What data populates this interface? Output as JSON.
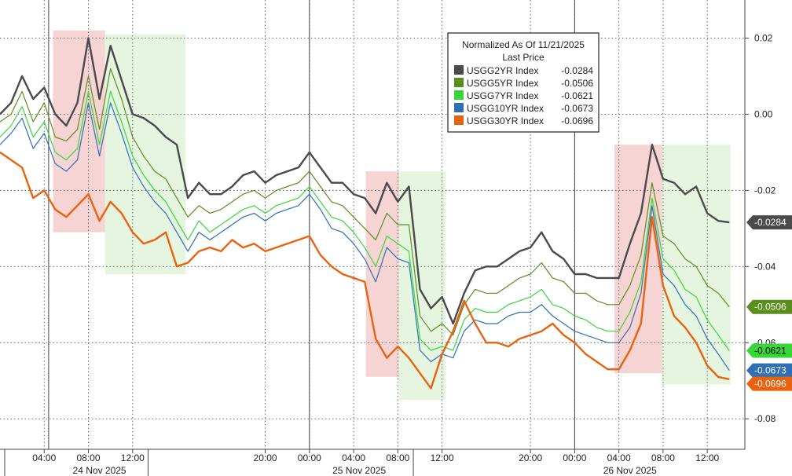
{
  "chart_data": {
    "type": "line",
    "title": "",
    "ylim": [
      -0.088,
      0.03
    ],
    "yticks": [
      0.02,
      0.0,
      -0.02,
      -0.04,
      -0.06,
      -0.08
    ],
    "ytick_labels": [
      "0.02",
      "0.00",
      "-0.02",
      "-0.04",
      "-0.06",
      "-0.08"
    ],
    "xticks": [
      {
        "x": 12,
        "label": "04:00"
      },
      {
        "x": 16,
        "label": "08:00"
      },
      {
        "x": 20,
        "label": "12:00"
      },
      {
        "x": 32,
        "label": "20:00"
      },
      {
        "x": 36,
        "label": "00:00"
      },
      {
        "x": 40,
        "label": "04:00"
      },
      {
        "x": 44,
        "label": "08:00"
      },
      {
        "x": 48,
        "label": "12:00"
      },
      {
        "x": 56,
        "label": "20:00"
      },
      {
        "x": 60,
        "label": "00:00"
      },
      {
        "x": 64,
        "label": "04:00"
      },
      {
        "x": 68,
        "label": "08:00"
      },
      {
        "x": 72,
        "label": "12:00"
      }
    ],
    "x_range": [
      8,
      75.4
    ],
    "date_labels": [
      {
        "x": 17,
        "label": "24 Nov 2025"
      },
      {
        "x": 40.5,
        "label": "25 Nov 2025"
      },
      {
        "x": 65,
        "label": "26 Nov 2025"
      }
    ],
    "day_separators": [
      21.4,
      45.4
    ],
    "midnight_lines": [
      12.4,
      36,
      60
    ],
    "legend": {
      "title_lines": [
        "Normalized As Of 11/21/2025",
        "Last Price"
      ],
      "placement": "top-right"
    },
    "shaded_regions": [
      {
        "x0": 12.8,
        "x1": 17.5,
        "y0": 0.022,
        "y1": -0.031,
        "kind": "red"
      },
      {
        "x0": 17.5,
        "x1": 24.8,
        "y0": 0.021,
        "y1": -0.042,
        "kind": "green"
      },
      {
        "x0": 41.1,
        "x1": 44.1,
        "y0": -0.015,
        "y1": -0.069,
        "kind": "red"
      },
      {
        "x0": 44.1,
        "x1": 48.3,
        "y0": -0.015,
        "y1": -0.075,
        "kind": "green"
      },
      {
        "x0": 63.6,
        "x1": 67.9,
        "y0": -0.008,
        "y1": -0.068,
        "kind": "red"
      },
      {
        "x0": 67.9,
        "x1": 74.1,
        "y0": -0.008,
        "y1": -0.071,
        "kind": "green"
      }
    ],
    "series": [
      {
        "name": "USGG2YR Index",
        "last": "-0.0284",
        "color": "#4a4a4a",
        "x": [
          8,
          9,
          10,
          11,
          12,
          13,
          14,
          15,
          16,
          17,
          18,
          19,
          20,
          21,
          22,
          23,
          24,
          25,
          26,
          27,
          28,
          29,
          30,
          31,
          32,
          33,
          34,
          35,
          36,
          37,
          38,
          39,
          40,
          41,
          42,
          43,
          44,
          45,
          46,
          47,
          48,
          49,
          50,
          51,
          52,
          53,
          54,
          55,
          56,
          57,
          58,
          59,
          60,
          61,
          62,
          63,
          64,
          65,
          66,
          67,
          68,
          69,
          70,
          71,
          72,
          73,
          74
        ],
        "y": [
          0.0,
          0.003,
          0.01,
          0.004,
          0.007,
          0.0,
          -0.003,
          0.003,
          0.02,
          0.004,
          0.018,
          0.009,
          0.0,
          -0.001,
          -0.003,
          -0.006,
          -0.008,
          -0.022,
          -0.018,
          -0.021,
          -0.021,
          -0.019,
          -0.016,
          -0.015,
          -0.018,
          -0.016,
          -0.015,
          -0.014,
          -0.01,
          -0.014,
          -0.018,
          -0.018,
          -0.021,
          -0.022,
          -0.026,
          -0.018,
          -0.023,
          -0.019,
          -0.046,
          -0.051,
          -0.048,
          -0.055,
          -0.047,
          -0.041,
          -0.04,
          -0.04,
          -0.038,
          -0.036,
          -0.035,
          -0.031,
          -0.036,
          -0.038,
          -0.042,
          -0.042,
          -0.043,
          -0.043,
          -0.043,
          -0.034,
          -0.026,
          -0.008,
          -0.017,
          -0.018,
          -0.021,
          -0.019,
          -0.026,
          -0.028,
          -0.0284
        ]
      },
      {
        "name": "USGG5YR Index",
        "last": "-0.0506",
        "color": "#5a8f1e",
        "x": [
          8,
          9,
          10,
          11,
          12,
          13,
          14,
          15,
          16,
          17,
          18,
          19,
          20,
          21,
          22,
          23,
          24,
          25,
          26,
          27,
          28,
          29,
          30,
          31,
          32,
          33,
          34,
          35,
          36,
          37,
          38,
          39,
          40,
          41,
          42,
          43,
          44,
          45,
          46,
          47,
          48,
          49,
          50,
          51,
          52,
          53,
          54,
          55,
          56,
          57,
          58,
          59,
          60,
          61,
          62,
          63,
          64,
          65,
          66,
          67,
          68,
          69,
          70,
          71,
          72,
          73,
          74
        ],
        "y": [
          -0.002,
          0.0,
          0.006,
          -0.002,
          0.003,
          -0.006,
          -0.007,
          -0.004,
          0.01,
          -0.004,
          0.012,
          0.004,
          -0.006,
          -0.011,
          -0.015,
          -0.017,
          -0.022,
          -0.027,
          -0.024,
          -0.026,
          -0.025,
          -0.023,
          -0.021,
          -0.02,
          -0.022,
          -0.02,
          -0.019,
          -0.018,
          -0.015,
          -0.019,
          -0.023,
          -0.024,
          -0.027,
          -0.03,
          -0.033,
          -0.026,
          -0.029,
          -0.029,
          -0.053,
          -0.057,
          -0.055,
          -0.058,
          -0.05,
          -0.046,
          -0.047,
          -0.047,
          -0.045,
          -0.043,
          -0.042,
          -0.039,
          -0.043,
          -0.044,
          -0.047,
          -0.047,
          -0.049,
          -0.05,
          -0.05,
          -0.045,
          -0.037,
          -0.018,
          -0.032,
          -0.034,
          -0.038,
          -0.04,
          -0.045,
          -0.047,
          -0.0506
        ]
      },
      {
        "name": "USGG7YR Index",
        "last": "-0.0621",
        "color": "#39d63a",
        "x": [
          8,
          9,
          10,
          11,
          12,
          13,
          14,
          15,
          16,
          17,
          18,
          19,
          20,
          21,
          22,
          23,
          24,
          25,
          26,
          27,
          28,
          29,
          30,
          31,
          32,
          33,
          34,
          35,
          36,
          37,
          38,
          39,
          40,
          41,
          42,
          43,
          44,
          45,
          46,
          47,
          48,
          49,
          50,
          51,
          52,
          53,
          54,
          55,
          56,
          57,
          58,
          59,
          60,
          61,
          62,
          63,
          64,
          65,
          66,
          67,
          68,
          69,
          70,
          71,
          72,
          73,
          74
        ],
        "y": [
          -0.006,
          -0.003,
          0.002,
          -0.006,
          -0.002,
          -0.01,
          -0.012,
          -0.009,
          0.006,
          -0.008,
          0.006,
          -0.002,
          -0.011,
          -0.016,
          -0.02,
          -0.023,
          -0.028,
          -0.033,
          -0.028,
          -0.031,
          -0.029,
          -0.027,
          -0.025,
          -0.024,
          -0.026,
          -0.024,
          -0.023,
          -0.022,
          -0.019,
          -0.023,
          -0.027,
          -0.028,
          -0.031,
          -0.035,
          -0.04,
          -0.032,
          -0.034,
          -0.036,
          -0.059,
          -0.062,
          -0.061,
          -0.062,
          -0.054,
          -0.051,
          -0.052,
          -0.052,
          -0.05,
          -0.049,
          -0.048,
          -0.046,
          -0.05,
          -0.051,
          -0.053,
          -0.054,
          -0.056,
          -0.057,
          -0.057,
          -0.052,
          -0.044,
          -0.022,
          -0.038,
          -0.041,
          -0.046,
          -0.048,
          -0.054,
          -0.058,
          -0.0621
        ]
      },
      {
        "name": "USGG10YR Index",
        "last": "-0.0673",
        "color": "#2e6fb5",
        "x": [
          8,
          9,
          10,
          11,
          12,
          13,
          14,
          15,
          16,
          17,
          18,
          19,
          20,
          21,
          22,
          23,
          24,
          25,
          26,
          27,
          28,
          29,
          30,
          31,
          32,
          33,
          34,
          35,
          36,
          37,
          38,
          39,
          40,
          41,
          42,
          43,
          44,
          45,
          46,
          47,
          48,
          49,
          50,
          51,
          52,
          53,
          54,
          55,
          56,
          57,
          58,
          59,
          60,
          61,
          62,
          63,
          64,
          65,
          66,
          67,
          68,
          69,
          70,
          71,
          72,
          73,
          74
        ],
        "y": [
          -0.008,
          -0.005,
          -0.001,
          -0.009,
          -0.005,
          -0.013,
          -0.015,
          -0.012,
          0.003,
          -0.011,
          0.003,
          -0.005,
          -0.014,
          -0.019,
          -0.023,
          -0.026,
          -0.031,
          -0.036,
          -0.031,
          -0.033,
          -0.031,
          -0.029,
          -0.027,
          -0.026,
          -0.028,
          -0.026,
          -0.025,
          -0.024,
          -0.021,
          -0.025,
          -0.03,
          -0.031,
          -0.034,
          -0.038,
          -0.044,
          -0.035,
          -0.038,
          -0.039,
          -0.062,
          -0.065,
          -0.063,
          -0.064,
          -0.057,
          -0.054,
          -0.055,
          -0.055,
          -0.053,
          -0.052,
          -0.052,
          -0.05,
          -0.053,
          -0.055,
          -0.057,
          -0.058,
          -0.059,
          -0.06,
          -0.06,
          -0.056,
          -0.047,
          -0.024,
          -0.042,
          -0.045,
          -0.05,
          -0.053,
          -0.059,
          -0.063,
          -0.0673
        ]
      },
      {
        "name": "USGG30YR Index",
        "last": "-0.0696",
        "color": "#e8620f",
        "x": [
          8,
          9,
          10,
          11,
          12,
          13,
          14,
          15,
          16,
          17,
          18,
          19,
          20,
          21,
          22,
          23,
          24,
          25,
          26,
          27,
          28,
          29,
          30,
          31,
          32,
          33,
          34,
          35,
          36,
          37,
          38,
          39,
          40,
          41,
          42,
          43,
          44,
          45,
          46,
          47,
          48,
          49,
          50,
          51,
          52,
          53,
          54,
          55,
          56,
          57,
          58,
          59,
          60,
          61,
          62,
          63,
          64,
          65,
          66,
          67,
          68,
          69,
          70,
          71,
          72,
          73,
          74
        ],
        "y": [
          -0.01,
          -0.012,
          -0.014,
          -0.022,
          -0.02,
          -0.025,
          -0.027,
          -0.024,
          -0.021,
          -0.028,
          -0.023,
          -0.026,
          -0.031,
          -0.034,
          -0.033,
          -0.031,
          -0.04,
          -0.039,
          -0.036,
          -0.035,
          -0.036,
          -0.033,
          -0.035,
          -0.034,
          -0.036,
          -0.035,
          -0.034,
          -0.033,
          -0.032,
          -0.037,
          -0.04,
          -0.042,
          -0.043,
          -0.044,
          -0.059,
          -0.064,
          -0.061,
          -0.064,
          -0.068,
          -0.072,
          -0.063,
          -0.057,
          -0.049,
          -0.055,
          -0.06,
          -0.06,
          -0.061,
          -0.059,
          -0.058,
          -0.057,
          -0.055,
          -0.058,
          -0.06,
          -0.063,
          -0.065,
          -0.067,
          -0.067,
          -0.062,
          -0.055,
          -0.027,
          -0.045,
          -0.053,
          -0.056,
          -0.06,
          -0.066,
          -0.069,
          -0.0696
        ]
      }
    ]
  }
}
